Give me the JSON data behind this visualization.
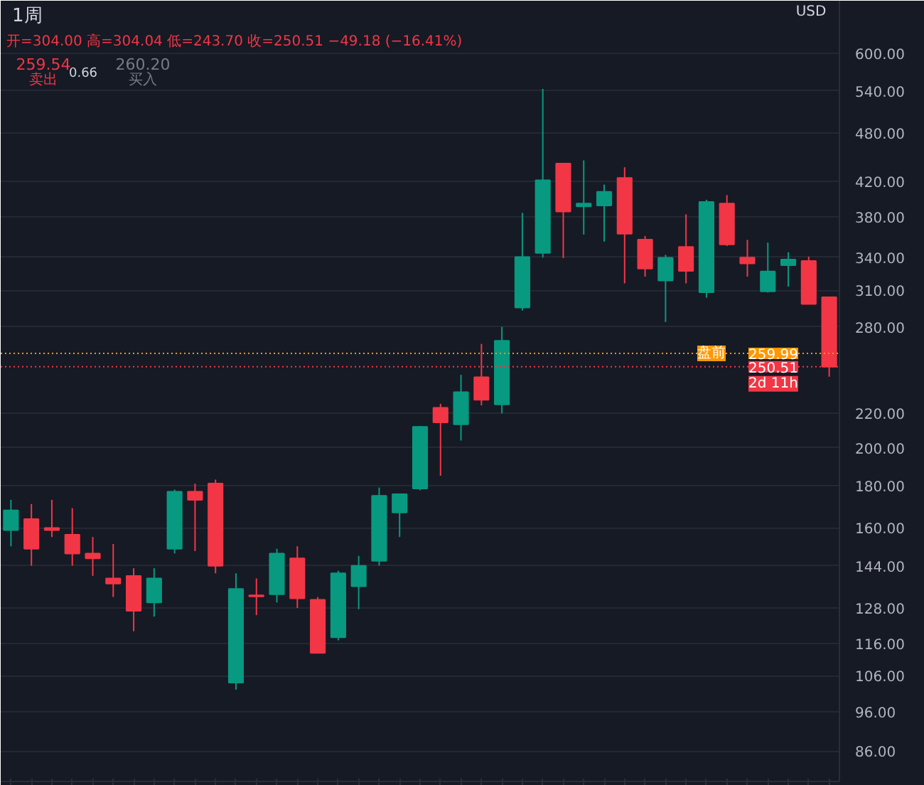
{
  "chart_data": {
    "type": "candlestick",
    "title": "1周",
    "subtitle": "开=304.00 高=304.04 低=243.70 收=250.51 −49.18 (−16.41%)",
    "categories": [
      null,
      null,
      null,
      null,
      null,
      null,
      null,
      null,
      null,
      null,
      null,
      null,
      null,
      null,
      null,
      null,
      null,
      null,
      null,
      null,
      null,
      null,
      null,
      null,
      null,
      null,
      null,
      null,
      null,
      null,
      null,
      null,
      null,
      null,
      null,
      null,
      null,
      null,
      null,
      null,
      null
    ],
    "ohlc": [
      [
        159,
        173,
        152,
        168
      ],
      [
        164,
        171,
        144,
        151
      ],
      [
        160,
        173,
        156,
        159
      ],
      [
        157,
        169,
        144,
        149
      ],
      [
        149,
        156,
        140,
        147
      ],
      [
        139,
        153,
        132,
        137
      ],
      [
        140,
        143,
        120,
        127
      ],
      [
        130,
        143,
        125,
        139
      ],
      [
        151,
        178,
        149,
        177
      ],
      [
        177,
        181,
        150,
        173
      ],
      [
        181,
        183,
        141,
        144
      ],
      [
        104,
        141,
        102,
        135
      ],
      [
        132.6,
        139,
        125.5,
        132.2
      ],
      [
        133,
        151,
        130,
        149
      ],
      [
        147,
        152,
        128,
        131.5
      ],
      [
        131,
        132,
        113,
        113
      ],
      [
        118,
        142,
        117,
        141
      ],
      [
        136,
        148,
        127.6,
        144
      ],
      [
        146,
        179,
        144,
        175
      ],
      [
        167,
        176,
        156,
        175.7
      ],
      [
        178.5,
        212.5,
        177.7,
        212
      ],
      [
        223.5,
        226,
        185,
        214.6
      ],
      [
        213.5,
        245,
        204,
        233.4
      ],
      [
        243.4,
        267,
        225,
        228.5
      ],
      [
        225.6,
        280,
        220,
        269.4
      ],
      [
        295.5,
        384.5,
        293,
        340
      ],
      [
        344,
        543,
        339.5,
        421
      ],
      [
        441,
        441,
        339,
        386
      ],
      [
        391.6,
        445,
        362,
        394.7
      ],
      [
        392.5,
        416,
        355,
        407.8
      ],
      [
        423.7,
        436.6,
        316,
        362.8
      ],
      [
        357,
        360.5,
        322,
        329.3
      ],
      [
        318.5,
        342.2,
        283.8,
        339.3
      ],
      [
        349.7,
        383,
        316,
        327.1
      ],
      [
        308.3,
        398.8,
        303.6,
        396.3
      ],
      [
        394.7,
        404,
        350.7,
        352.1
      ],
      [
        339.5,
        356.7,
        322,
        334
      ],
      [
        309,
        354,
        308,
        326.7
      ],
      [
        332.3,
        344.6,
        313.2,
        337.6
      ],
      [
        336.4,
        340.4,
        298.4,
        298.4
      ],
      [
        304.0,
        304.04,
        243.7,
        250.51
      ]
    ],
    "colors": [
      "#089981",
      "#f23645",
      "#f23645",
      "#f23645",
      "#f23645",
      "#f23645",
      "#f23645",
      "#089981",
      "#089981",
      "#f23645",
      "#f23645",
      "#089981",
      "#f23645",
      "#089981",
      "#f23645",
      "#f23645",
      "#089981",
      "#089981",
      "#089981",
      "#089981",
      "#089981",
      "#f23645",
      "#089981",
      "#f23645",
      "#089981",
      "#089981",
      "#089981",
      "#f23645",
      "#089981",
      "#089981",
      "#f23645",
      "#f23645",
      "#089981",
      "#f23645",
      "#089981",
      "#f23645",
      "#f23645",
      "#089981",
      "#089981",
      "#f23645",
      "#f23645"
    ],
    "log": "y",
    "ylim": [
      79,
      694
    ],
    "yticks": [
      {
        "value": 86,
        "label": "86.00"
      },
      {
        "value": 96,
        "label": "96.00"
      },
      {
        "value": 106,
        "label": "106.00"
      },
      {
        "value": 116,
        "label": "116.00"
      },
      {
        "value": 128,
        "label": "128.00"
      },
      {
        "value": 144,
        "label": "144.00"
      },
      {
        "value": 160,
        "label": "160.00"
      },
      {
        "value": 180,
        "label": "180.00"
      },
      {
        "value": 200,
        "label": "200.00"
      },
      {
        "value": 220,
        "label": "220.00"
      },
      {
        "value": 280,
        "label": "280.00"
      },
      {
        "value": 310,
        "label": "310.00"
      },
      {
        "value": 340,
        "label": "340.00"
      },
      {
        "value": 380,
        "label": "380.00"
      },
      {
        "value": 420,
        "label": "420.00"
      },
      {
        "value": 480,
        "label": "480.00"
      },
      {
        "value": 540,
        "label": "540.00"
      },
      {
        "value": 600,
        "label": "600.00"
      }
    ],
    "grid": "y",
    "tick_labels": "y",
    "ref_lines": [
      {
        "axis": "y",
        "value": 259.99,
        "label": "盘前",
        "color": "#ff9800",
        "line_style": "dotted"
      },
      {
        "axis": "y",
        "value": 250.51,
        "label": null,
        "color": "#f23645",
        "line_style": "dotted"
      }
    ],
    "annotations": [
      "259.54",
      "卖出",
      "0.66",
      "260.20",
      "买入",
      "USD",
      {
        "text": "259.99",
        "y": 259.99
      },
      {
        "text": "250.51",
        "y": 250.51
      },
      {
        "text": "2d 11h",
        "y": 250.51
      }
    ]
  }
}
